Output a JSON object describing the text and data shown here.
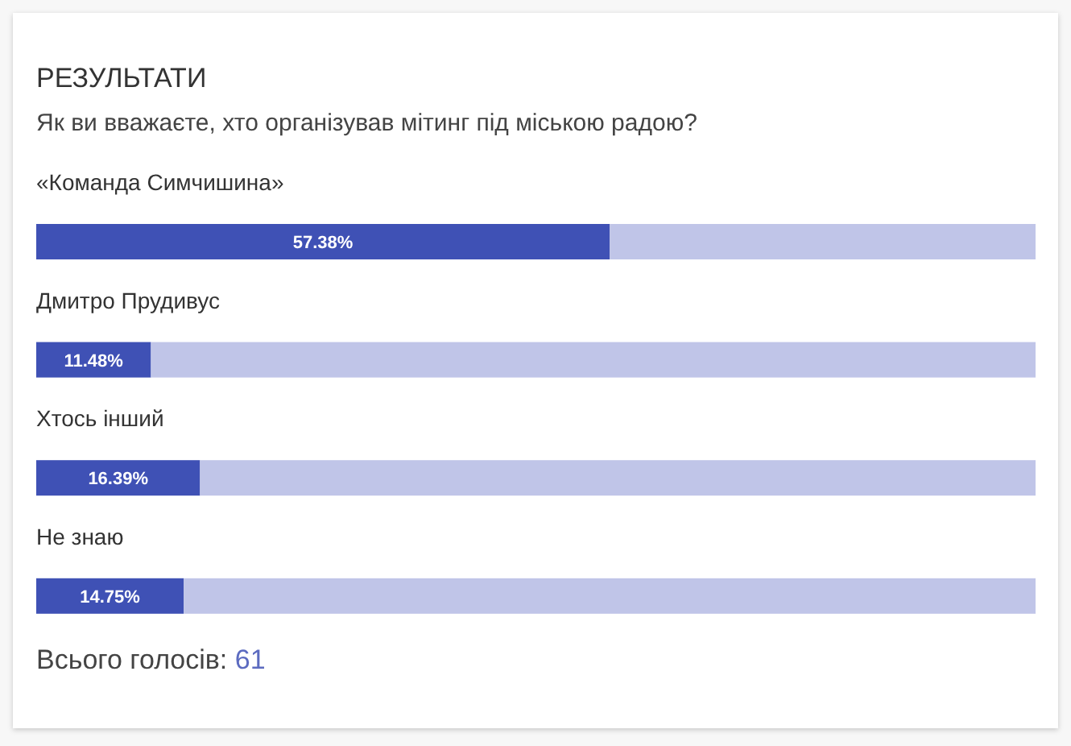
{
  "chart_data": {
    "type": "bar",
    "orientation": "horizontal",
    "stacked": true,
    "title": "РЕЗУЛЬТАТИ",
    "subtitle": "Як ви вважаєте, хто організував мітинг під міською радою?",
    "categories": [
      "«Команда Симчишина»",
      "Дмитро Прудивус",
      "Хтось інший",
      "Не знаю"
    ],
    "series": [
      {
        "color": "#3f51b5",
        "values": [
          57.38,
          11.48,
          16.39,
          14.75
        ],
        "value_labels": [
          "57.38%",
          "11.48%",
          "16.39%",
          "14.75%"
        ]
      },
      {
        "color": "#c0c5e8",
        "values": [
          42.62,
          88.52,
          83.61,
          85.25
        ]
      }
    ],
    "xlim": [
      0,
      100
    ],
    "tick_labels": "y",
    "annotations": [
      "Всього голосів: 61"
    ]
  }
}
